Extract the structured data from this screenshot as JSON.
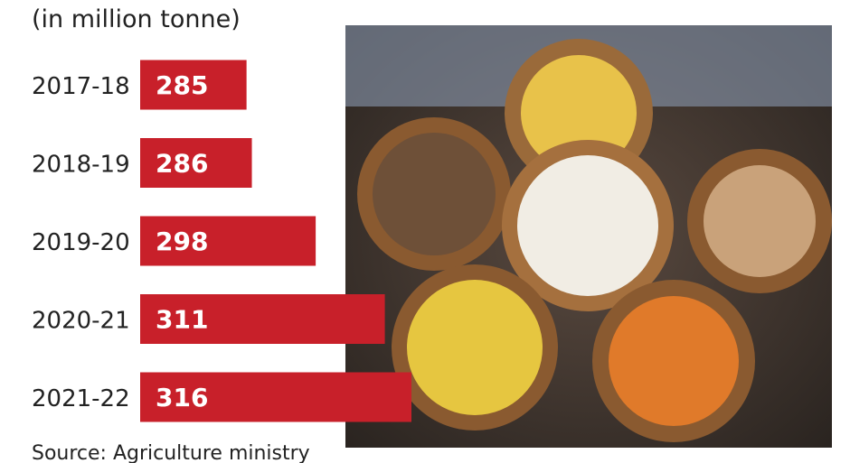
{
  "chart_data": {
    "type": "bar",
    "subtitle": "(in million tonne)",
    "categories": [
      "2017-18",
      "2018-19",
      "2019-20",
      "2020-21",
      "2021-22"
    ],
    "values": [
      285,
      286,
      298,
      311,
      316
    ],
    "color": "#c8202a",
    "xlim": [
      265,
      316
    ],
    "source": "Source: Agriculture ministry"
  }
}
